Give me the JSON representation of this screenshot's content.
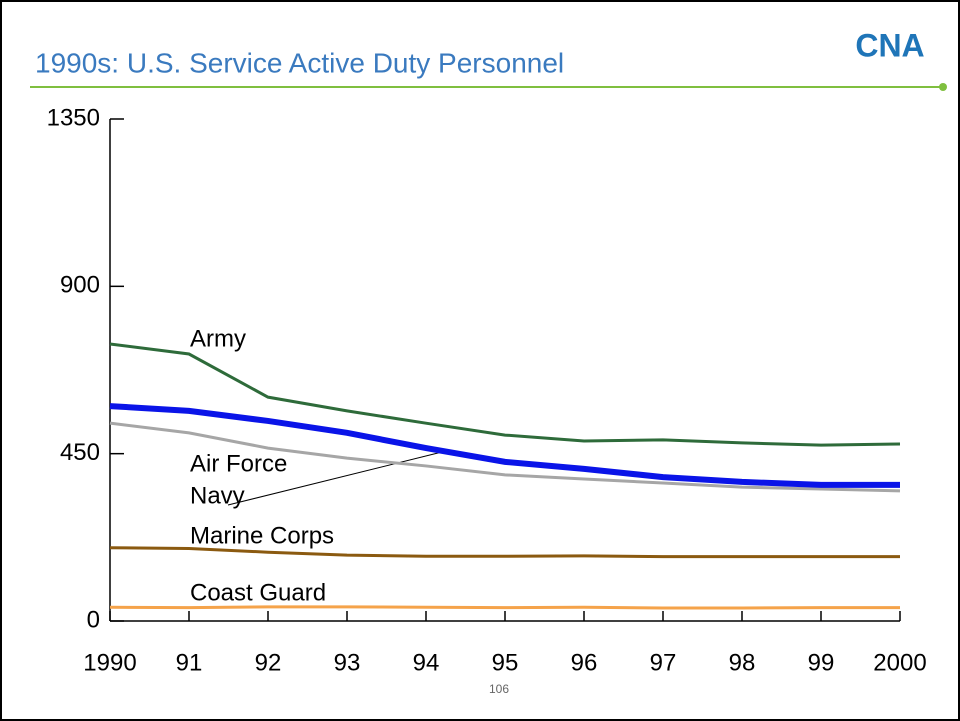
{
  "logo": "CNA",
  "page_number": "106",
  "chart_data": {
    "type": "line",
    "title": "1990s: U.S. Service Active Duty Personnel",
    "categories": [
      "1990",
      "91",
      "92",
      "93",
      "94",
      "95",
      "96",
      "97",
      "98",
      "99",
      "2000"
    ],
    "ylim": [
      0,
      1350
    ],
    "yticks": [
      0,
      450,
      900,
      1350
    ],
    "series": [
      {
        "name": "Army",
        "color": "#2e6b3a",
        "values": [
          745,
          718,
          602,
          565,
          532,
          500,
          484,
          487,
          479,
          473,
          476
        ]
      },
      {
        "name": "Air Force",
        "color": "#a6a6a6",
        "values": [
          532,
          506,
          465,
          438,
          417,
          393,
          382,
          371,
          360,
          355,
          350
        ]
      },
      {
        "name": "Navy",
        "color": "#0a14e8",
        "values": [
          578,
          565,
          538,
          506,
          465,
          428,
          409,
          387,
          374,
          366,
          366
        ]
      },
      {
        "name": "Marine Corps",
        "color": "#8b5a10",
        "values": [
          197,
          195,
          185,
          177,
          174,
          174,
          175,
          173,
          173,
          173,
          173
        ]
      },
      {
        "name": "Coast Guard",
        "color": "#f5a34a",
        "values": [
          37,
          36,
          38,
          38,
          37,
          36,
          37,
          35,
          35,
          36,
          36
        ]
      }
    ]
  }
}
